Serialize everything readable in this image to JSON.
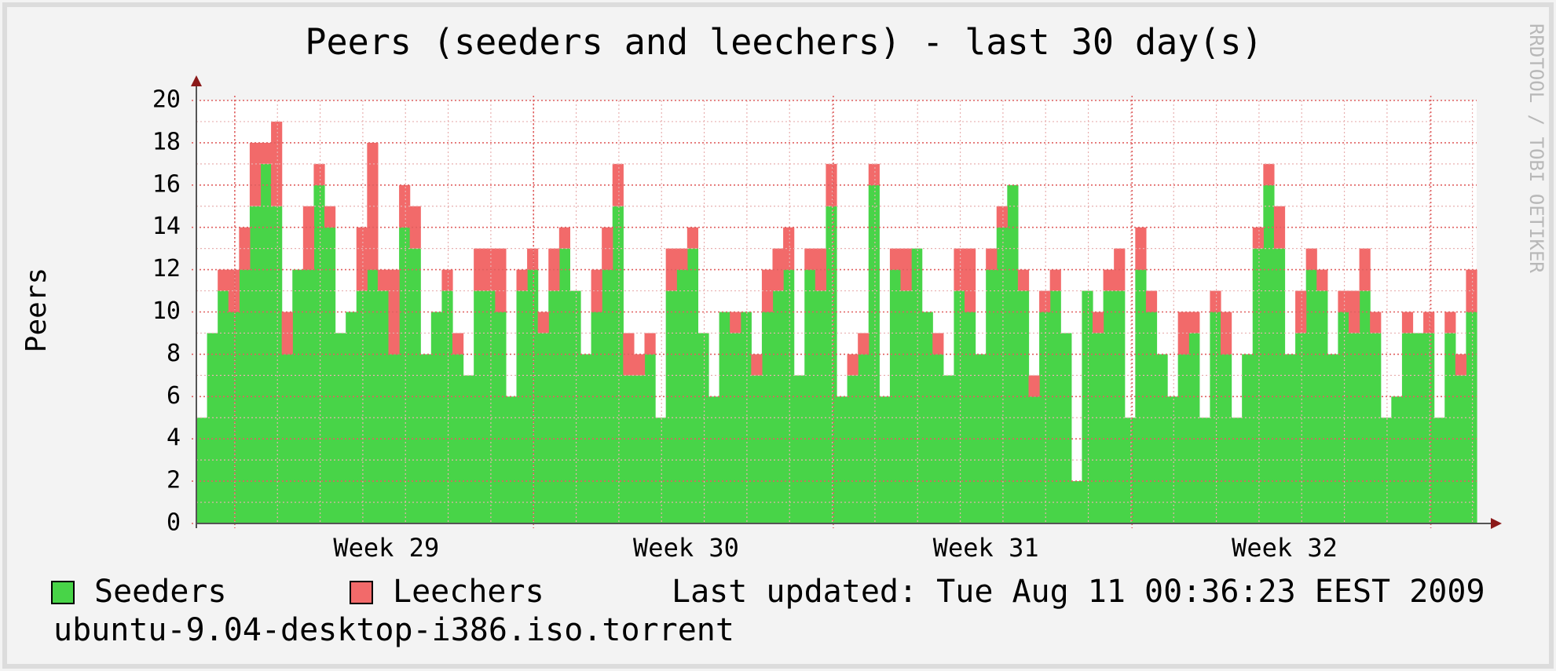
{
  "chart_data": {
    "type": "bar",
    "stacked": true,
    "title": "Peers (seeders and leechers) - last 30 day(s)",
    "ylabel": "Peers",
    "watermark": "RRDTOOL / TOBI OETIKER",
    "last_updated": "Last updated: Tue Aug 11 00:36:23 EEST 2009",
    "footer": "ubuntu-9.04-desktop-i386.iso.torrent",
    "categories": [
      null,
      null,
      null,
      null,
      null,
      null,
      null,
      null,
      null,
      null,
      null,
      null,
      null,
      null,
      null,
      null,
      null,
      null,
      null,
      null,
      null,
      null,
      null,
      null,
      null,
      null,
      null,
      null,
      null,
      null,
      null,
      null,
      null,
      null,
      null,
      null,
      null,
      null,
      null,
      null,
      null,
      null,
      null,
      null,
      null,
      null,
      null,
      null,
      null,
      null,
      null,
      null,
      null,
      null,
      null,
      null,
      null,
      null,
      null,
      null,
      null,
      null,
      null,
      null,
      null,
      null,
      null,
      null,
      null,
      null,
      null,
      null,
      null,
      null,
      null,
      null,
      null,
      null,
      null,
      null,
      null,
      null,
      null,
      null,
      null,
      null,
      null,
      null,
      null,
      null,
      null,
      null,
      null,
      null,
      null,
      null,
      null,
      null,
      null,
      null,
      null,
      null,
      null,
      null,
      null,
      null,
      null,
      null,
      null,
      null,
      null,
      null,
      null,
      null,
      null,
      null,
      null,
      null,
      null,
      null
    ],
    "series": [
      {
        "name": "Seeders",
        "color": "#48d448",
        "values": [
          5,
          9,
          11,
          10,
          12,
          15,
          17,
          15,
          8,
          12,
          12,
          16,
          14,
          9,
          10,
          11,
          12,
          11,
          8,
          14,
          13,
          8,
          10,
          11,
          8,
          7,
          11,
          11,
          10,
          6,
          11,
          12,
          9,
          11,
          13,
          11,
          8,
          10,
          12,
          15,
          7,
          7,
          8,
          5,
          11,
          12,
          13,
          9,
          6,
          10,
          9,
          10,
          7,
          10,
          11,
          12,
          7,
          12,
          11,
          15,
          6,
          7,
          8,
          16,
          6,
          12,
          11,
          13,
          10,
          8,
          7,
          11,
          10,
          8,
          12,
          14,
          16,
          11,
          6,
          10,
          11,
          9,
          2,
          11,
          9,
          11,
          11,
          5,
          12,
          10,
          8,
          6,
          8,
          9,
          5,
          10,
          8,
          5,
          8,
          13,
          16,
          13,
          8,
          9,
          12,
          11,
          8,
          10,
          9,
          11,
          9,
          5,
          6,
          9,
          9,
          9,
          5,
          9,
          7,
          10
        ]
      },
      {
        "name": "Leechers",
        "color": "#f26a6a",
        "values": [
          0,
          0,
          1,
          2,
          2,
          3,
          1,
          4,
          2,
          0,
          3,
          1,
          1,
          0,
          0,
          3,
          6,
          1,
          4,
          2,
          2,
          0,
          0,
          1,
          1,
          0,
          2,
          2,
          3,
          0,
          1,
          1,
          1,
          2,
          1,
          0,
          0,
          2,
          2,
          2,
          2,
          1,
          1,
          0,
          2,
          1,
          1,
          0,
          0,
          0,
          1,
          0,
          1,
          2,
          2,
          2,
          0,
          1,
          2,
          2,
          0,
          1,
          1,
          1,
          0,
          1,
          2,
          0,
          0,
          1,
          0,
          2,
          3,
          0,
          1,
          1,
          0,
          1,
          1,
          1,
          1,
          0,
          0,
          0,
          1,
          1,
          2,
          0,
          2,
          1,
          0,
          0,
          2,
          1,
          0,
          1,
          2,
          0,
          0,
          1,
          1,
          2,
          0,
          2,
          1,
          1,
          0,
          1,
          2,
          2,
          1,
          0,
          0,
          1,
          0,
          1,
          0,
          1,
          1,
          2
        ]
      }
    ],
    "ylim": [
      0,
      20
    ],
    "yticks": [
      0,
      2,
      4,
      6,
      8,
      10,
      12,
      14,
      16,
      18,
      20
    ],
    "xlim": [
      0,
      120
    ],
    "xticks": [
      {
        "value": 17.8,
        "label": "Week 29"
      },
      {
        "value": 45.9,
        "label": "Week 30"
      },
      {
        "value": 74,
        "label": "Week 31"
      },
      {
        "value": 102,
        "label": "Week 32"
      }
    ],
    "xgrid": [
      3.6,
      31.6,
      59.7,
      87.7,
      115.7
    ],
    "grid": true
  }
}
